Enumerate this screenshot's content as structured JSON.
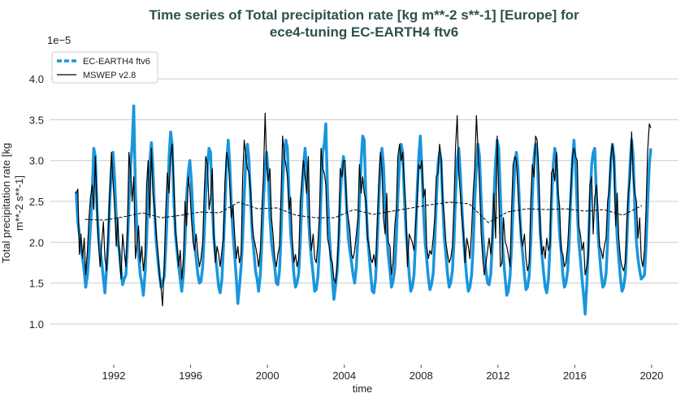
{
  "chart_data": {
    "type": "line",
    "title": [
      "Time series of Total precipitation rate [kg m**-2 s**-1] [Europe] for",
      "ece4-tuning EC-EARTH4 ftv6"
    ],
    "y_label": [
      "Total precipitation rate [kg",
      "m**-2 s**-1]"
    ],
    "x_label": "time",
    "y_offset_label": "1e−5",
    "xlim": [
      1988.7,
      2021.4
    ],
    "ylim": [
      0.7,
      4.25
    ],
    "xticks": [
      1992,
      1996,
      2000,
      2004,
      2008,
      2012,
      2016,
      2020
    ],
    "yticks": [
      {
        "value": 1,
        "label": "1.0"
      },
      1.5,
      {
        "value": 2,
        "label": "2.0"
      },
      2.5,
      {
        "value": 3,
        "label": "3.0"
      },
      3.5,
      {
        "value": 4,
        "label": "4.0"
      }
    ],
    "grid": true,
    "legend": "upper left",
    "x": [
      1990.04,
      1990.13,
      1990.21,
      1990.29,
      1990.38,
      1990.46,
      1990.54,
      1990.63,
      1990.71,
      1990.79,
      1990.88,
      1990.96,
      1991.04,
      1991.13,
      1991.21,
      1991.29,
      1991.38,
      1991.46,
      1991.54,
      1991.63,
      1991.71,
      1991.79,
      1991.88,
      1991.96,
      1992.04,
      1992.13,
      1992.21,
      1992.29,
      1992.38,
      1992.46,
      1992.54,
      1992.63,
      1992.71,
      1992.79,
      1992.88,
      1992.96,
      1993.04,
      1993.13,
      1993.21,
      1993.29,
      1993.38,
      1993.46,
      1993.54,
      1993.63,
      1993.71,
      1993.79,
      1993.88,
      1993.96,
      1994.04,
      1994.13,
      1994.21,
      1994.29,
      1994.38,
      1994.46,
      1994.54,
      1994.63,
      1994.71,
      1994.79,
      1994.88,
      1994.96,
      1995.04,
      1995.13,
      1995.21,
      1995.29,
      1995.38,
      1995.46,
      1995.54,
      1995.63,
      1995.71,
      1995.79,
      1995.88,
      1995.96,
      1996.04,
      1996.13,
      1996.21,
      1996.29,
      1996.38,
      1996.46,
      1996.54,
      1996.63,
      1996.71,
      1996.79,
      1996.88,
      1996.96,
      1997.04,
      1997.13,
      1997.21,
      1997.29,
      1997.38,
      1997.46,
      1997.54,
      1997.63,
      1997.71,
      1997.79,
      1997.88,
      1997.96,
      1998.04,
      1998.13,
      1998.21,
      1998.29,
      1998.38,
      1998.46,
      1998.54,
      1998.63,
      1998.71,
      1998.79,
      1998.88,
      1998.96,
      1999.04,
      1999.13,
      1999.21,
      1999.29,
      1999.38,
      1999.46,
      1999.54,
      1999.63,
      1999.71,
      1999.79,
      1999.88,
      1999.96,
      2000.04,
      2000.13,
      2000.21,
      2000.29,
      2000.38,
      2000.46,
      2000.54,
      2000.63,
      2000.71,
      2000.79,
      2000.88,
      2000.96,
      2001.04,
      2001.13,
      2001.21,
      2001.29,
      2001.38,
      2001.46,
      2001.54,
      2001.63,
      2001.71,
      2001.79,
      2001.88,
      2001.96,
      2002.04,
      2002.13,
      2002.21,
      2002.29,
      2002.38,
      2002.46,
      2002.54,
      2002.63,
      2002.71,
      2002.79,
      2002.88,
      2002.96,
      2003.04,
      2003.13,
      2003.21,
      2003.29,
      2003.38,
      2003.46,
      2003.54,
      2003.63,
      2003.71,
      2003.79,
      2003.88,
      2003.96,
      2004.04,
      2004.13,
      2004.21,
      2004.29,
      2004.38,
      2004.46,
      2004.54,
      2004.63,
      2004.71,
      2004.79,
      2004.88,
      2004.96,
      2005.04,
      2005.13,
      2005.21,
      2005.29,
      2005.38,
      2005.46,
      2005.54,
      2005.63,
      2005.71,
      2005.79,
      2005.88,
      2005.96,
      2006.04,
      2006.13,
      2006.21,
      2006.29,
      2006.38,
      2006.46,
      2006.54,
      2006.63,
      2006.71,
      2006.79,
      2006.88,
      2006.96,
      2007.04,
      2007.13,
      2007.21,
      2007.29,
      2007.38,
      2007.46,
      2007.54,
      2007.63,
      2007.71,
      2007.79,
      2007.88,
      2007.96,
      2008.04,
      2008.13,
      2008.21,
      2008.29,
      2008.38,
      2008.46,
      2008.54,
      2008.63,
      2008.71,
      2008.79,
      2008.88,
      2008.96,
      2009.04,
      2009.13,
      2009.21,
      2009.29,
      2009.38,
      2009.46,
      2009.54,
      2009.63,
      2009.71,
      2009.79,
      2009.88,
      2009.96,
      2010.04,
      2010.13,
      2010.21,
      2010.29,
      2010.38,
      2010.46,
      2010.54,
      2010.63,
      2010.71,
      2010.79,
      2010.88,
      2010.96,
      2011.04,
      2011.13,
      2011.21,
      2011.29,
      2011.38,
      2011.46,
      2011.54,
      2011.63,
      2011.71,
      2011.79,
      2011.88,
      2011.96,
      2012.04,
      2012.13,
      2012.21,
      2012.29,
      2012.38,
      2012.46,
      2012.54,
      2012.63,
      2012.71,
      2012.79,
      2012.88,
      2012.96,
      2013.04,
      2013.13,
      2013.21,
      2013.29,
      2013.38,
      2013.46,
      2013.54,
      2013.63,
      2013.71,
      2013.79,
      2013.88,
      2013.96,
      2014.04,
      2014.13,
      2014.21,
      2014.29,
      2014.38,
      2014.46,
      2014.54,
      2014.63,
      2014.71,
      2014.79,
      2014.88,
      2014.96,
      2015.04,
      2015.13,
      2015.21,
      2015.29,
      2015.38,
      2015.46,
      2015.54,
      2015.63,
      2015.71,
      2015.79,
      2015.88,
      2015.96,
      2016.04,
      2016.13,
      2016.21,
      2016.29,
      2016.38,
      2016.46,
      2016.54,
      2016.63,
      2016.71,
      2016.79,
      2016.88,
      2016.96,
      2017.04,
      2017.13,
      2017.21,
      2017.29,
      2017.38,
      2017.46,
      2017.54,
      2017.63,
      2017.71,
      2017.79,
      2017.88,
      2017.96,
      2018.04,
      2018.13,
      2018.21,
      2018.29,
      2018.38,
      2018.46,
      2018.54,
      2018.63,
      2018.71,
      2018.79,
      2018.88,
      2018.96,
      2019.04,
      2019.13,
      2019.21,
      2019.29,
      2019.38,
      2019.46,
      2019.54,
      2019.63,
      2019.71,
      2019.79,
      2019.88,
      2019.96
    ],
    "series": [
      {
        "name": "EC-EARTH4 ftv6",
        "color": "#1a96dc",
        "values": [
          2.62,
          2.25,
          2.1,
          1.95,
          1.8,
          1.65,
          1.45,
          1.6,
          1.85,
          2.2,
          2.6,
          3.15,
          3.05,
          2.4,
          2.05,
          1.9,
          1.75,
          1.55,
          1.38,
          1.7,
          2.0,
          2.5,
          2.9,
          3.1,
          2.8,
          2.3,
          2.0,
          1.9,
          1.65,
          1.48,
          1.55,
          1.6,
          1.95,
          2.45,
          2.95,
          3.2,
          3.67,
          2.6,
          2.15,
          1.85,
          1.6,
          1.5,
          1.35,
          1.62,
          2.05,
          2.6,
          3.0,
          3.22,
          2.9,
          2.35,
          2.0,
          1.8,
          1.6,
          1.45,
          1.5,
          1.58,
          1.95,
          2.4,
          3.05,
          3.35,
          3.2,
          2.5,
          2.1,
          1.9,
          1.7,
          1.55,
          1.4,
          1.62,
          2.0,
          2.55,
          2.85,
          3.0,
          2.75,
          2.3,
          1.95,
          1.8,
          1.6,
          1.5,
          1.52,
          1.7,
          2.1,
          2.6,
          2.95,
          3.15,
          3.1,
          2.45,
          2.05,
          1.85,
          1.65,
          1.45,
          1.38,
          1.55,
          1.95,
          2.45,
          3.0,
          3.25,
          2.95,
          2.4,
          2.1,
          1.85,
          1.55,
          1.25,
          1.45,
          1.7,
          2.05,
          2.55,
          3.05,
          3.2,
          3.0,
          2.5,
          2.1,
          1.9,
          1.65,
          1.55,
          1.4,
          1.6,
          2.0,
          2.5,
          2.9,
          3.1,
          2.85,
          2.3,
          2.0,
          1.85,
          1.7,
          1.5,
          1.48,
          1.65,
          2.1,
          2.7,
          3.1,
          3.25,
          3.15,
          2.55,
          2.1,
          1.9,
          1.6,
          1.45,
          1.5,
          1.62,
          2.0,
          2.5,
          2.95,
          3.15,
          2.9,
          2.35,
          2.0,
          1.8,
          1.6,
          1.4,
          1.42,
          1.58,
          1.95,
          2.6,
          3.1,
          3.2,
          3.45,
          2.6,
          2.15,
          1.85,
          1.55,
          1.3,
          1.45,
          1.65,
          2.0,
          2.55,
          2.9,
          3.05,
          2.8,
          2.4,
          2.05,
          1.9,
          1.75,
          1.6,
          1.5,
          1.7,
          2.05,
          2.5,
          3.0,
          3.3,
          3.25,
          2.5,
          2.1,
          1.85,
          1.6,
          1.4,
          1.38,
          1.55,
          1.95,
          2.45,
          2.95,
          3.15,
          2.95,
          2.4,
          2.1,
          1.85,
          1.65,
          1.45,
          1.52,
          1.68,
          2.05,
          2.55,
          3.0,
          3.2,
          3.1,
          2.55,
          2.15,
          1.9,
          1.6,
          1.4,
          1.45,
          1.6,
          2.0,
          2.6,
          3.05,
          3.3,
          2.9,
          2.35,
          2.0,
          1.8,
          1.55,
          1.42,
          1.48,
          1.62,
          2.0,
          2.5,
          2.95,
          3.1,
          3.0,
          2.45,
          2.05,
          1.85,
          1.6,
          1.45,
          1.5,
          1.65,
          2.0,
          2.55,
          3.0,
          3.15,
          2.85,
          2.4,
          2.05,
          1.8,
          1.55,
          1.4,
          1.45,
          1.6,
          1.95,
          2.5,
          2.9,
          3.2,
          3.05,
          2.5,
          2.1,
          1.85,
          1.65,
          1.5,
          1.48,
          1.62,
          2.0,
          2.55,
          3.0,
          3.25,
          3.15,
          2.55,
          2.05,
          1.8,
          1.55,
          1.35,
          1.4,
          1.58,
          1.95,
          2.45,
          2.95,
          3.1,
          2.9,
          2.4,
          2.05,
          1.85,
          1.6,
          1.42,
          1.45,
          1.6,
          2.0,
          2.55,
          3.05,
          3.2,
          3.1,
          2.5,
          2.1,
          1.85,
          1.62,
          1.45,
          1.38,
          1.55,
          1.95,
          2.5,
          2.95,
          3.15,
          3.05,
          2.45,
          2.1,
          1.9,
          1.6,
          1.45,
          1.5,
          1.65,
          2.0,
          2.55,
          3.0,
          3.25,
          2.95,
          2.4,
          2.0,
          1.8,
          1.55,
          1.35,
          1.12,
          1.5,
          1.95,
          2.5,
          2.95,
          3.1,
          3.15,
          2.55,
          2.1,
          1.85,
          1.6,
          1.45,
          1.48,
          1.62,
          2.0,
          2.55,
          3.0,
          3.2,
          3.05,
          2.45,
          2.05,
          1.8,
          1.55,
          1.4,
          1.45,
          1.6,
          2.0,
          2.5,
          2.95,
          3.25,
          3.05,
          2.4,
          2.0,
          1.8,
          1.65,
          1.55,
          1.57,
          1.6,
          1.95,
          2.45,
          2.95,
          3.15
        ]
      },
      {
        "name": "MSWEP v2.8",
        "color": "#000000",
        "values": [
          2.6,
          2.65,
          1.85,
          2.1,
          1.8,
          2.05,
          1.6,
          1.9,
          2.3,
          2.55,
          2.7,
          2.4,
          3.05,
          2.4,
          1.95,
          1.7,
          2.0,
          2.25,
          1.8,
          1.65,
          2.1,
          2.6,
          3.1,
          2.75,
          2.45,
          1.95,
          2.3,
          1.85,
          1.55,
          2.1,
          1.9,
          1.7,
          2.15,
          3.1,
          2.85,
          2.5,
          2.8,
          1.8,
          2.0,
          2.2,
          1.75,
          1.95,
          1.65,
          1.85,
          2.7,
          3.0,
          2.3,
          3.15,
          2.6,
          2.4,
          2.1,
          1.9,
          1.6,
          1.45,
          1.22,
          1.75,
          2.4,
          2.85,
          2.6,
          3.05,
          3.2,
          2.7,
          2.15,
          1.95,
          1.7,
          1.9,
          1.55,
          1.8,
          2.5,
          2.2,
          2.8,
          2.65,
          2.3,
          2.0,
          1.9,
          2.1,
          1.85,
          1.7,
          1.8,
          2.0,
          2.6,
          3.05,
          2.95,
          2.4,
          2.55,
          2.9,
          2.1,
          1.75,
          1.95,
          1.85,
          1.7,
          1.9,
          2.05,
          2.75,
          3.1,
          3.0,
          2.7,
          2.3,
          2.45,
          2.1,
          1.8,
          1.95,
          1.75,
          1.85,
          2.8,
          3.25,
          3.05,
          2.9,
          2.85,
          2.6,
          2.2,
          2.05,
          1.95,
          1.85,
          1.7,
          1.9,
          2.4,
          2.8,
          3.58,
          2.95,
          2.75,
          2.9,
          2.3,
          2.1,
          1.8,
          1.7,
          1.85,
          1.95,
          2.6,
          3.3,
          3.05,
          2.95,
          2.8,
          2.4,
          2.55,
          2.05,
          1.75,
          1.85,
          1.7,
          1.8,
          2.5,
          2.75,
          3.0,
          2.8,
          2.6,
          3.05,
          2.2,
          1.9,
          2.1,
          1.8,
          1.75,
          2.0,
          2.35,
          3.15,
          2.9,
          2.85,
          2.7,
          2.05,
          1.95,
          1.8,
          1.75,
          1.55,
          1.5,
          1.7,
          2.1,
          2.9,
          2.8,
          3.0,
          3.0,
          2.4,
          2.3,
          2.15,
          1.85,
          1.8,
          1.9,
          2.1,
          2.3,
          2.95,
          2.6,
          2.8,
          2.6,
          2.5,
          2.05,
          1.95,
          1.8,
          1.75,
          1.85,
          1.7,
          2.2,
          2.7,
          3.1,
          2.9,
          2.3,
          2.1,
          2.6,
          2.0,
          1.95,
          1.6,
          1.75,
          2.2,
          2.4,
          3.05,
          3.2,
          3.0,
          3.1,
          2.7,
          2.4,
          1.7,
          2.1,
          2.05,
          2.0,
          1.9,
          2.2,
          2.5,
          2.95,
          2.9,
          3.0,
          2.55,
          2.65,
          1.95,
          1.8,
          1.9,
          1.85,
          2.05,
          2.3,
          2.8,
          2.85,
          3.2,
          3.05,
          2.5,
          2.3,
          2.0,
          1.85,
          1.75,
          1.8,
          1.95,
          2.45,
          3.15,
          3.55,
          2.85,
          2.6,
          2.3,
          2.1,
          1.75,
          2.05,
          1.95,
          1.8,
          2.15,
          2.6,
          2.9,
          3.55,
          3.15,
          2.7,
          2.1,
          1.8,
          1.6,
          1.75,
          1.9,
          2.05,
          1.85,
          2.1,
          2.6,
          2.05,
          3.3,
          2.6,
          1.7,
          1.75,
          2.3,
          2.0,
          1.95,
          1.85,
          1.7,
          2.4,
          2.95,
          3.05,
          3.0,
          2.65,
          2.3,
          2.05,
          1.95,
          2.1,
          1.8,
          1.65,
          1.75,
          2.5,
          2.95,
          2.8,
          3.3,
          3.25,
          2.85,
          2.1,
          1.85,
          1.95,
          1.8,
          2.05,
          1.9,
          1.95,
          2.85,
          2.9,
          2.75,
          3.1,
          2.6,
          2.45,
          1.9,
          1.85,
          1.7,
          1.75,
          1.95,
          2.3,
          2.6,
          3.05,
          3.15,
          3.05,
          3.0,
          2.2,
          2.1,
          1.9,
          2.0,
          1.6,
          1.7,
          1.85,
          2.7,
          2.8,
          2.1,
          2.55,
          2.7,
          2.4,
          1.95,
          1.9,
          1.8,
          1.95,
          2.05,
          2.5,
          2.65,
          3.05,
          3.2,
          3.0,
          2.2,
          2.6,
          2.05,
          1.8,
          1.7,
          1.65,
          1.75,
          2.25,
          2.6,
          2.8,
          3.35,
          2.8,
          2.6,
          2.5,
          2.05,
          2.3,
          1.8,
          1.7,
          1.9,
          2.4,
          3.1,
          3.45,
          3.4
        ]
      }
    ],
    "mswep_annual_mean": {
      "color": "#000000",
      "x": [
        1990.5,
        1991.5,
        1992.5,
        1993.5,
        1994.5,
        1995.5,
        1996.5,
        1997.5,
        1998.5,
        1999.5,
        2000.5,
        2001.5,
        2002.5,
        2003.5,
        2004.5,
        2005.5,
        2006.5,
        2007.5,
        2008.5,
        2009.5,
        2010.5,
        2011.5,
        2012.5,
        2013.5,
        2014.5,
        2015.5,
        2016.5,
        2017.5,
        2018.5,
        2019.5
      ],
      "values": [
        2.28,
        2.27,
        2.31,
        2.36,
        2.3,
        2.33,
        2.37,
        2.36,
        2.49,
        2.41,
        2.42,
        2.33,
        2.3,
        2.3,
        2.4,
        2.34,
        2.38,
        2.42,
        2.46,
        2.49,
        2.47,
        2.24,
        2.37,
        2.41,
        2.4,
        2.41,
        2.38,
        2.4,
        2.33,
        2.45
      ]
    }
  }
}
